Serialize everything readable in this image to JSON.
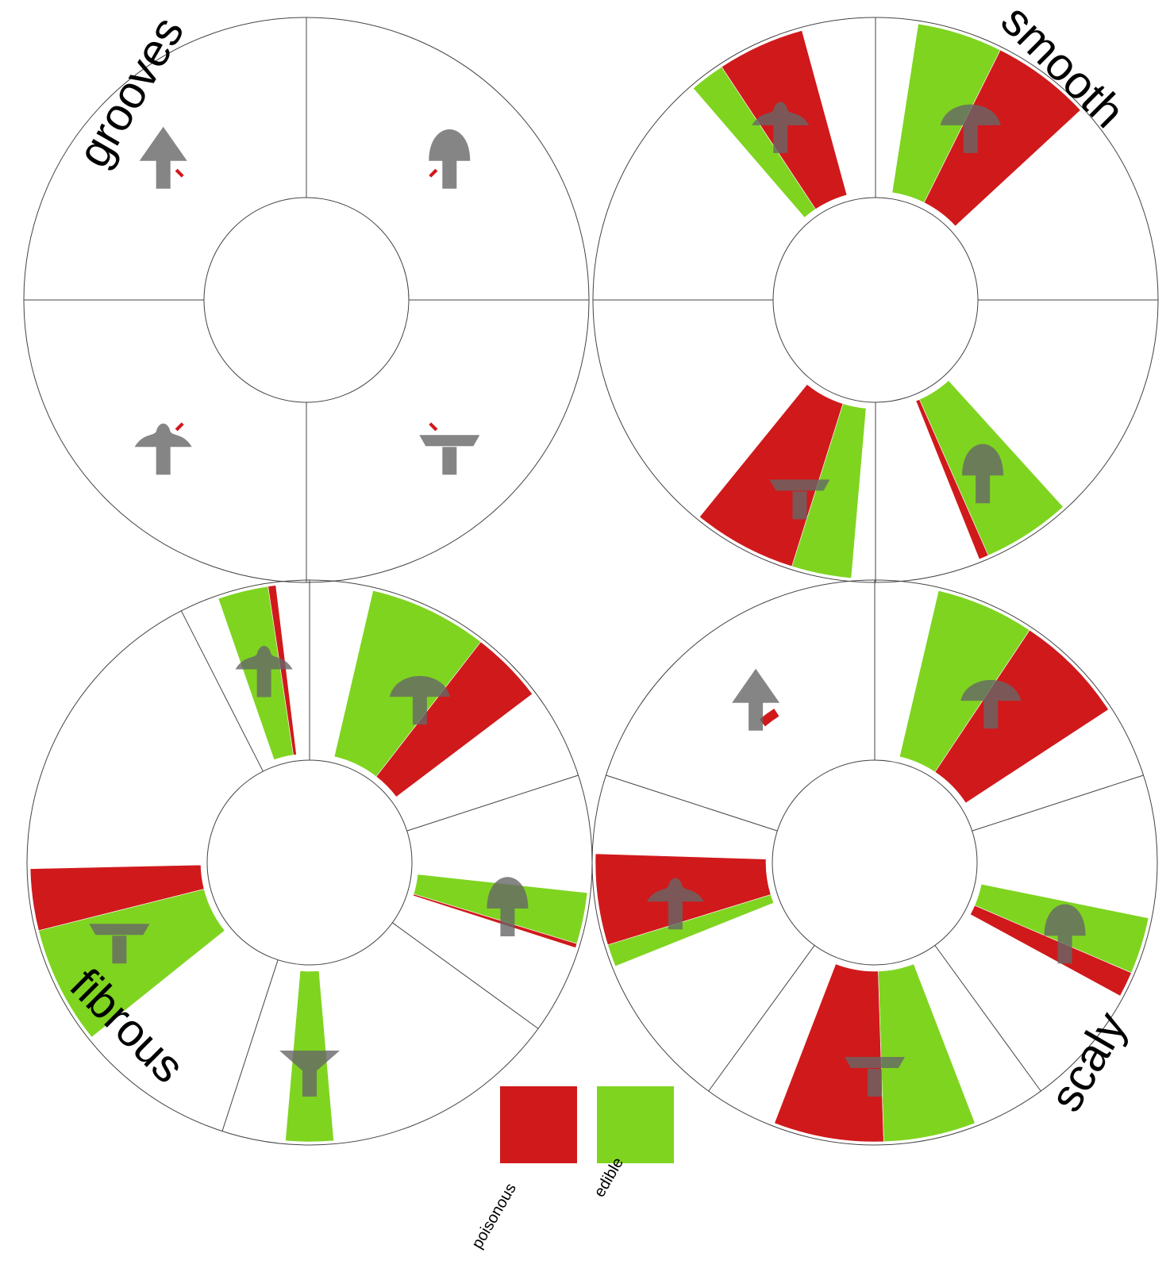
{
  "colors": {
    "poisonous": "#d0191b",
    "edible": "#7fd420",
    "outline": "#444444",
    "icon": "#666666"
  },
  "legend": {
    "items": [
      {
        "label": "poisonous",
        "color": "#d0191b"
      },
      {
        "label": "edible",
        "color": "#7fd420"
      }
    ]
  },
  "chart_data": [
    {
      "type": "radial-waffle",
      "title": "grooves",
      "sectors": [
        {
          "shape": "conical",
          "count": "1",
          "poisonous": 1,
          "edible": 0
        },
        {
          "shape": "bell",
          "count": "1",
          "poisonous": 1,
          "edible": 0
        },
        {
          "shape": "flat",
          "count": "1",
          "poisonous": 1,
          "edible": 0
        },
        {
          "shape": "knobbed",
          "count": "1",
          "poisonous": 1,
          "edible": 0
        }
      ]
    },
    {
      "type": "radial-waffle",
      "title": "smooth",
      "sectors": [
        {
          "shape": "knobbed",
          "count": "418",
          "poisonous": 298,
          "edible": 120
        },
        {
          "shape": "convex",
          "count": "1074",
          "poisonous": 578,
          "edible": 496
        },
        {
          "shape": "bell",
          "count": "244",
          "poisonous": 24,
          "edible": 220
        },
        {
          "shape": "flat",
          "count": "820",
          "poisonous": 520,
          "edible": 300
        }
      ]
    },
    {
      "type": "radial-waffle",
      "title": "fibrous",
      "sectors": [
        {
          "shape": "knobbed",
          "count": "60",
          "poisonous": 8,
          "edible": 52
        },
        {
          "shape": "convex",
          "count": "1160",
          "poisonous": 440,
          "edible": 720
        },
        {
          "shape": "bell",
          "count": "52",
          "poisonous": 4,
          "edible": 48
        },
        {
          "shape": "sunken",
          "count": "32",
          "poisonous": 0,
          "edible": 32
        },
        {
          "shape": "flat",
          "count": "1016",
          "poisonous": 348,
          "edible": 668
        }
      ]
    },
    {
      "type": "radial-waffle",
      "title": "scaly",
      "sectors": [
        {
          "shape": "conical",
          "count": "3",
          "poisonous": 3,
          "edible": 0
        },
        {
          "shape": "convex",
          "count": "1422",
          "poisonous": 754,
          "edible": 668
        },
        {
          "shape": "bell",
          "count": "155",
          "poisonous": 48,
          "edible": 107
        },
        {
          "shape": "flat",
          "count": "1315",
          "poisonous": 715,
          "edible": 600
        },
        {
          "shape": "knobbed",
          "count": "349",
          "poisonous": 280,
          "edible": 69
        }
      ]
    }
  ]
}
